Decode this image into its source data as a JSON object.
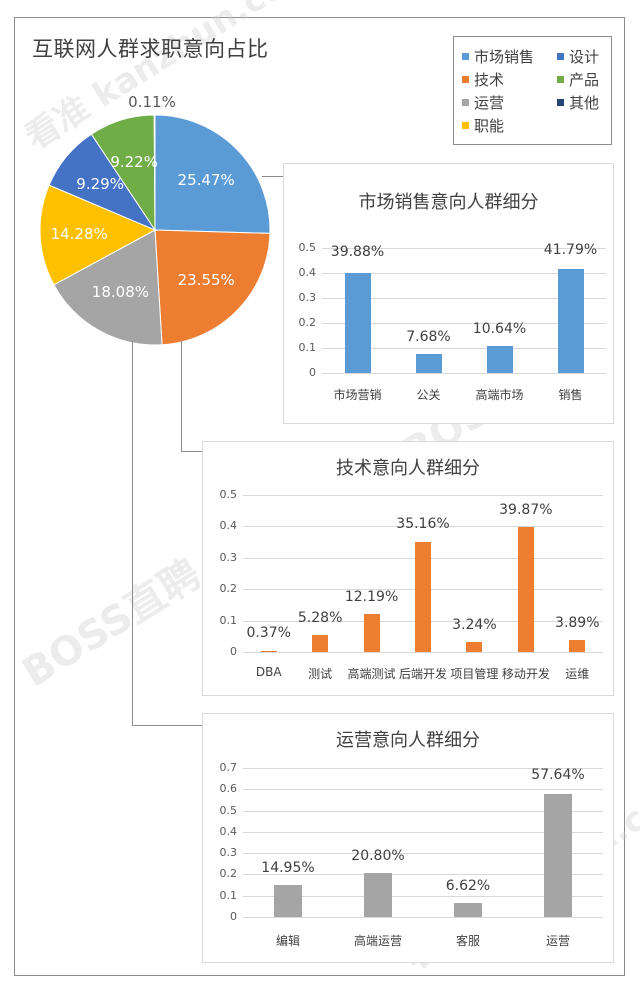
{
  "colors": {
    "market": "#5b9bd5",
    "tech": "#ed7d31",
    "ops": "#a5a5a5",
    "func": "#ffc000",
    "design": "#4472c4",
    "product": "#70ad47",
    "other": "#264478"
  },
  "watermarks": [
    "看准 kanzhun.com",
    "BOSS直聘",
    "BOSS直聘",
    "看准 kanzhun.com"
  ],
  "chart_data": [
    {
      "type": "pie",
      "title": "互联网人群求职意向占比",
      "legend_position": "top-right",
      "categories": [
        "市场销售",
        "技术",
        "运营",
        "职能",
        "设计",
        "产品",
        "其他"
      ],
      "values": [
        25.47,
        23.55,
        18.08,
        14.28,
        9.29,
        9.22,
        0.11
      ],
      "labels": [
        "25.47%",
        "23.55%",
        "18.08%",
        "14.28%",
        "9.29%",
        "9.22%",
        "0.11%"
      ],
      "legend": [
        {
          "label": "市场销售",
          "color_key": "market"
        },
        {
          "label": "设计",
          "color_key": "design"
        },
        {
          "label": "技术",
          "color_key": "tech"
        },
        {
          "label": "产品",
          "color_key": "product"
        },
        {
          "label": "运营",
          "color_key": "ops"
        },
        {
          "label": "其他",
          "color_key": "other"
        },
        {
          "label": "职能",
          "color_key": "func"
        }
      ]
    },
    {
      "type": "bar",
      "title": "市场销售意向人群细分",
      "categories": [
        "市场营销",
        "公关",
        "高端市场",
        "销售"
      ],
      "values": [
        0.3988,
        0.0768,
        0.1064,
        0.4179
      ],
      "labels": [
        "39.88%",
        "7.68%",
        "10.64%",
        "41.79%"
      ],
      "yticks": [
        "0",
        "0.1",
        "0.2",
        "0.3",
        "0.4",
        "0.5"
      ],
      "ylim": [
        0,
        0.5
      ],
      "grid": true,
      "xlabel": "",
      "ylabel": ""
    },
    {
      "type": "bar",
      "title": "技术意向人群细分",
      "categories": [
        "DBA",
        "测试",
        "高端测试",
        "后端开发",
        "项目管理",
        "移动开发",
        "运维"
      ],
      "values": [
        0.0037,
        0.0528,
        0.1219,
        0.3516,
        0.0324,
        0.3987,
        0.0389
      ],
      "labels": [
        "0.37%",
        "5.28%",
        "12.19%",
        "35.16%",
        "3.24%",
        "39.87%",
        "3.89%"
      ],
      "yticks": [
        "0",
        "0.1",
        "0.2",
        "0.3",
        "0.4",
        "0.5"
      ],
      "ylim": [
        0,
        0.5
      ],
      "grid": true,
      "xlabel": "",
      "ylabel": ""
    },
    {
      "type": "bar",
      "title": "运营意向人群细分",
      "categories": [
        "编辑",
        "高端运营",
        "客服",
        "运营"
      ],
      "values": [
        0.1495,
        0.208,
        0.0662,
        0.5764
      ],
      "labels": [
        "14.95%",
        "20.80%",
        "6.62%",
        "57.64%"
      ],
      "yticks": [
        "0",
        "0.1",
        "0.2",
        "0.3",
        "0.4",
        "0.5",
        "0.6",
        "0.7"
      ],
      "ylim": [
        0,
        0.7
      ],
      "grid": true,
      "xlabel": "",
      "ylabel": ""
    }
  ]
}
